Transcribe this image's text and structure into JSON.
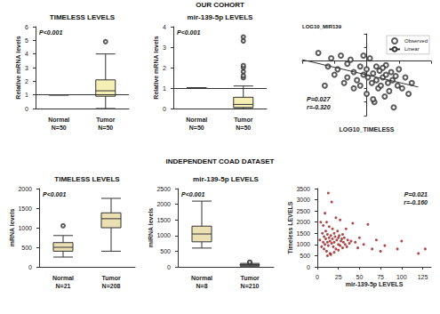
{
  "headers": [
    "OUR COHORT",
    "INDEPENDENT COAD DATASET"
  ],
  "chart_data": [
    {
      "type": "boxplot",
      "title": "TIMELESS LEVELS",
      "ylabel": "Relative mRNA levels",
      "categories": [
        "Normal\nN=50",
        "Tumor\nN=50"
      ],
      "boxes": [
        [
          1,
          1,
          1,
          1,
          1
        ],
        [
          0,
          0.9,
          1.3,
          2.1,
          4.0
        ]
      ],
      "outliers": [
        [],
        [
          4.9
        ]
      ],
      "reference_line": 1,
      "ylim": [
        0,
        6
      ],
      "yticks": [
        0,
        1,
        2,
        3,
        4,
        5,
        6
      ],
      "annotations": [
        "P<0.001"
      ],
      "color": "#f5efb5",
      "grid": false
    },
    {
      "type": "boxplot",
      "title": "mir-139-5p LEVELS",
      "ylabel": "Relative mRNA levels",
      "categories": [
        "Normal\nN=50",
        "Tumor\nN=50"
      ],
      "boxes": [
        [
          1,
          1,
          1,
          1,
          1
        ],
        [
          0,
          0.05,
          0.2,
          0.55,
          1.1
        ]
      ],
      "outliers": [
        [],
        [
          1.5,
          1.6,
          1.8,
          2.0,
          2.1,
          3.3,
          3.5
        ]
      ],
      "reference_line": 1,
      "ylim": [
        0,
        4
      ],
      "yticks": [
        0,
        1,
        2,
        3,
        4
      ],
      "annotations": [
        "P<0.001"
      ],
      "color": "#f5efb5",
      "grid": false
    },
    {
      "type": "scatter",
      "title": "LOG10_MIR139",
      "xlabel": "LOG10_TIMELESS",
      "xlim": [
        -1,
        1
      ],
      "xticks": [
        -1,
        -0.5,
        0,
        0.5,
        1
      ],
      "ylim": [
        -2,
        1
      ],
      "yticks": [
        -2,
        -1.5,
        -1,
        -0.5,
        0,
        0.5,
        1
      ],
      "tick_labels": false,
      "legend": "top-right",
      "grid": false,
      "annotations": [
        "P=0.027",
        "r=-0.320"
      ],
      "series": [
        {
          "name": "Observed",
          "type": "scatter",
          "marker": "empty-circle",
          "color": "#333333",
          "x": [
            -0.75,
            -0.6,
            -0.55,
            -0.5,
            -0.45,
            -0.4,
            -0.35,
            -0.3,
            -0.3,
            -0.25,
            -0.2,
            -0.2,
            -0.15,
            -0.1,
            -0.1,
            -0.05,
            0,
            0,
            0.02,
            0.05,
            0.08,
            0.1,
            0.12,
            0.15,
            0.15,
            0.18,
            0.2,
            0.22,
            0.25,
            0.28,
            0.3,
            0.3,
            0.33,
            0.35,
            0.38,
            0.4,
            0.42,
            0.45,
            0.48,
            0.5,
            0.55,
            0.6,
            0.65,
            0.7,
            -0.65,
            -0.05,
            0.25,
            0.1
          ],
          "values": [
            0.3,
            -0.2,
            0.1,
            -0.5,
            -0.3,
            0.2,
            -0.8,
            -0.1,
            -0.6,
            0.05,
            -0.4,
            -1.0,
            -0.7,
            -0.2,
            -0.9,
            -0.5,
            -0.3,
            -1.2,
            -0.6,
            0.1,
            -0.8,
            -0.45,
            -1.5,
            -0.2,
            -0.7,
            -1.0,
            -0.35,
            -0.9,
            -0.6,
            -1.3,
            -0.5,
            -0.15,
            -0.8,
            -1.1,
            -0.4,
            -0.7,
            -1.7,
            -0.55,
            -0.9,
            -0.3,
            -1.0,
            -0.6,
            -1.2,
            -0.8,
            -0.9,
            0.2,
            -0.25,
            -1.4
          ]
        },
        {
          "name": "Linear",
          "type": "line",
          "line_style": "solid",
          "color": "#333333",
          "x": [
            -1,
            0.8
          ],
          "values": [
            0.05,
            -0.95
          ]
        }
      ]
    },
    {
      "type": "boxplot",
      "title": "TIMELESS LEVELS",
      "ylabel": "mRNA levels",
      "categories": [
        "Normal\nN=21",
        "Tumor\nN=208"
      ],
      "boxes": [
        [
          250,
          400,
          500,
          620,
          800
        ],
        [
          400,
          1000,
          1230,
          1380,
          1750
        ]
      ],
      "outliers": [
        [
          1050
        ],
        []
      ],
      "ylim": [
        0,
        2000
      ],
      "yticks": [
        0,
        500,
        1000,
        1500,
        2000
      ],
      "annotations": [
        "P<0.001"
      ],
      "color": "#ebe0b4",
      "grid": false
    },
    {
      "type": "boxplot",
      "title": "mir-139-5p LEVELS",
      "ylabel": "miRNA levels",
      "categories": [
        "Normal\nN=8",
        "Tumor\nN=210"
      ],
      "boxes": [
        [
          600,
          800,
          1050,
          1300,
          2100
        ],
        [
          20,
          50,
          65,
          80,
          110
        ]
      ],
      "outliers": [
        [],
        [
          130,
          150
        ]
      ],
      "ylim": [
        0,
        2500
      ],
      "yticks": [
        0,
        500,
        1000,
        1500,
        2000,
        2500
      ],
      "annotations": [
        "P<0.001"
      ],
      "color": "#ebe0b4",
      "grid": false
    },
    {
      "type": "scatter",
      "xlabel": "mir-139-5p LEVELS",
      "ylabel": "Timeless LEVELS",
      "xlim": [
        0,
        135
      ],
      "xticks": [
        0,
        25,
        50,
        75,
        100,
        125
      ],
      "ylim": [
        0,
        3500
      ],
      "yticks": [
        0,
        500,
        1000,
        1500,
        2000,
        2500,
        3000,
        3500
      ],
      "grid": false,
      "annotations": [
        "P=0.021",
        "r=-0.160"
      ],
      "series": [
        {
          "type": "scatter",
          "marker": "circle",
          "color": "#9b1b1b",
          "x": [
            3,
            5,
            6,
            7,
            8,
            8,
            9,
            10,
            10,
            11,
            12,
            12,
            13,
            14,
            14,
            15,
            15,
            16,
            17,
            18,
            18,
            19,
            20,
            20,
            21,
            22,
            23,
            24,
            25,
            25,
            26,
            27,
            28,
            29,
            30,
            31,
            32,
            33,
            35,
            36,
            38,
            40,
            42,
            45,
            48,
            50,
            55,
            60,
            65,
            70,
            75,
            80,
            95,
            100,
            120,
            128,
            4,
            9,
            13,
            17,
            22,
            27,
            34,
            12,
            16,
            20,
            7,
            11,
            25,
            30
          ],
          "values": [
            1200,
            900,
            1500,
            1100,
            800,
            1350,
            1000,
            1600,
            1250,
            700,
            1450,
            1100,
            950,
            1800,
            1300,
            1150,
            600,
            1400,
            1050,
            1700,
            1250,
            900,
            1500,
            1100,
            1350,
            800,
            1200,
            1600,
            1000,
            1300,
            1400,
            950,
            1150,
            1250,
            850,
            1100,
            1300,
            1000,
            900,
            1200,
            1050,
            1150,
            1950,
            1100,
            850,
            1300,
            1000,
            1900,
            800,
            1200,
            700,
            950,
            800,
            1150,
            600,
            800,
            2000,
            2400,
            3300,
            2900,
            2200,
            2100,
            1700,
            500,
            550,
            650,
            1850,
            2000,
            750,
            1450
          ]
        }
      ]
    }
  ]
}
